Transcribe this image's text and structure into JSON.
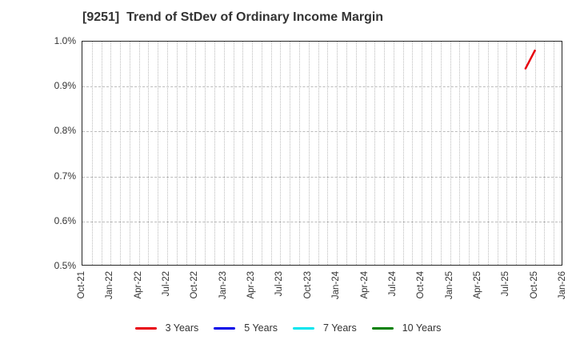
{
  "title": "[9251]  Trend of StDev of Ordinary Income Margin",
  "chart_data": {
    "type": "line",
    "title": "[9251]  Trend of StDev of Ordinary Income Margin",
    "xlabel": "",
    "ylabel": "",
    "ylim": [
      0.5,
      1.0
    ],
    "y_tick_labels": [
      "1.0%",
      "0.9%",
      "0.8%",
      "0.7%",
      "0.6%",
      "0.5%"
    ],
    "y_tick_values": [
      1.0,
      0.9,
      0.8,
      0.7,
      0.6,
      0.5
    ],
    "x_tick_labels": [
      "Oct-21",
      "Jan-22",
      "Apr-22",
      "Jul-22",
      "Oct-22",
      "Jan-23",
      "Apr-23",
      "Jul-23",
      "Oct-23",
      "Jan-24",
      "Apr-24",
      "Jul-24",
      "Oct-24",
      "Jan-25",
      "Apr-25",
      "Jul-25",
      "Oct-25",
      "Jan-26"
    ],
    "months_per_tick": 3,
    "total_months": 51,
    "grid": true,
    "legend_position": "bottom",
    "series": [
      {
        "name": "3 Years",
        "color": "#e8000d",
        "points": [
          {
            "x": "Sep-25",
            "month_index": 47,
            "value": 0.94
          },
          {
            "x": "Oct-25",
            "month_index": 48,
            "value": 0.98
          }
        ]
      },
      {
        "name": "5 Years",
        "color": "#0000e8",
        "points": []
      },
      {
        "name": "7 Years",
        "color": "#00e5ee",
        "points": []
      },
      {
        "name": "10 Years",
        "color": "#008000",
        "points": []
      }
    ],
    "colors": {
      "axis_border": "#262626",
      "gridline": "#bbbbbb",
      "text": "#333333",
      "background": "#ffffff"
    }
  }
}
